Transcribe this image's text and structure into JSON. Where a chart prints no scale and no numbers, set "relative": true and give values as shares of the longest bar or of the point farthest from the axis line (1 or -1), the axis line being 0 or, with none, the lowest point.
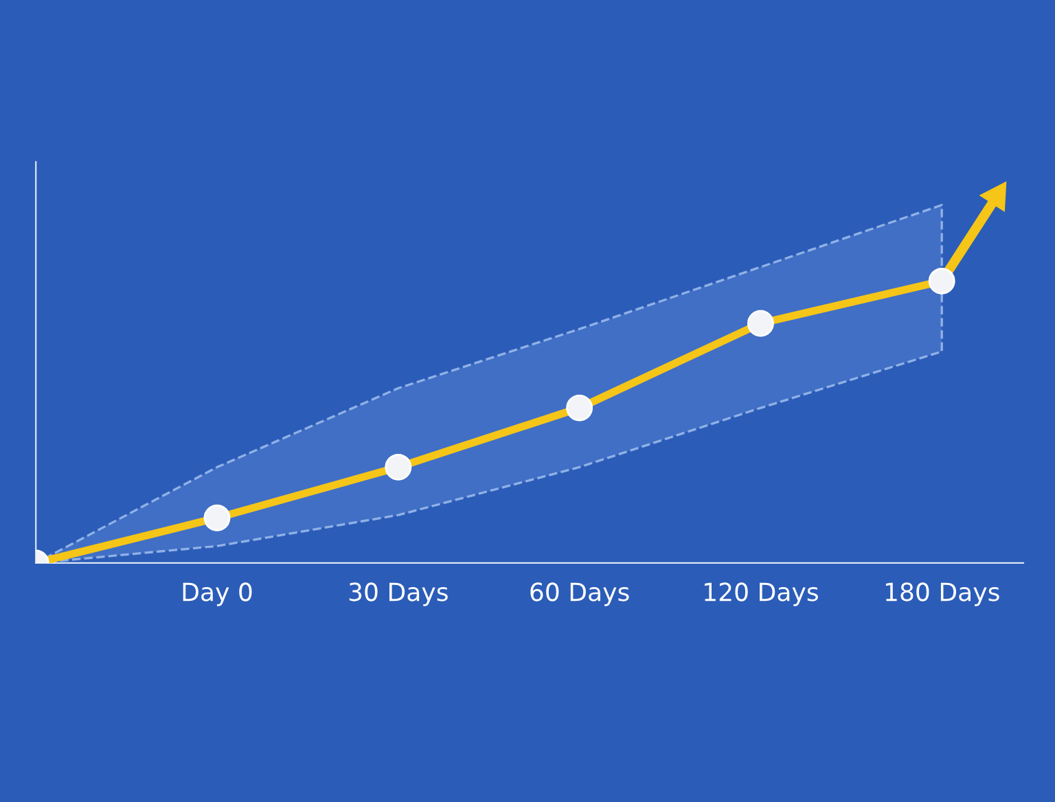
{
  "chart_data": {
    "type": "line",
    "relative": true,
    "categories": [
      null,
      "Day 0",
      "30 Days",
      "60 Days",
      "120 Days",
      "180 Days"
    ],
    "marker": "circle",
    "series": [
      {
        "color": "#f5c518",
        "values": [
          0,
          0.16,
          0.34,
          0.55,
          0.85,
          1
        ],
        "lower": [
          0,
          0.06,
          0.17,
          0.34,
          0.55,
          0.75
        ],
        "upper": [
          0,
          0.34,
          0.62,
          0.83,
          1.05,
          1.27
        ]
      }
    ]
  }
}
